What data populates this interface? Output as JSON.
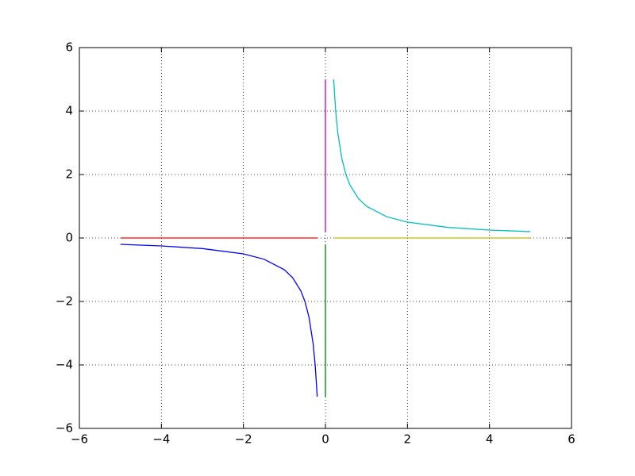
{
  "chart_data": {
    "type": "line",
    "xlim": [
      -6,
      6
    ],
    "ylim": [
      -6,
      6
    ],
    "xticks": [
      {
        "value": -6,
        "label": "−6"
      },
      {
        "value": -4,
        "label": "−4"
      },
      {
        "value": -2,
        "label": "−2"
      },
      0,
      2,
      4,
      6
    ],
    "yticks": [
      {
        "value": -6,
        "label": "−6"
      },
      {
        "value": -4,
        "label": "−4"
      },
      {
        "value": -2,
        "label": "−2"
      },
      0,
      2,
      4,
      6
    ],
    "grid": true,
    "series": [
      {
        "color": "#0000ff",
        "x": [
          -5,
          -4,
          -3,
          -2,
          -1.5,
          -1,
          -0.8,
          -0.6,
          -0.5,
          -0.4,
          -0.3,
          -0.25,
          -0.2
        ],
        "values": [
          -0.2,
          -0.25,
          -0.333,
          -0.5,
          -0.667,
          -1,
          -1.25,
          -1.667,
          -2,
          -2.5,
          -3.333,
          -4,
          -5
        ]
      },
      {
        "color": "#00bfbf",
        "x": [
          0.2,
          0.25,
          0.3,
          0.4,
          0.5,
          0.6,
          0.8,
          1,
          1.5,
          2,
          3,
          4,
          5
        ],
        "values": [
          5,
          4,
          3.333,
          2.5,
          2,
          1.667,
          1.25,
          1,
          0.667,
          0.5,
          0.333,
          0.25,
          0.2
        ]
      },
      {
        "color": "#ff0000",
        "x": [
          -5,
          -0.2
        ],
        "values": [
          0,
          0
        ]
      },
      {
        "color": "#bfbf00",
        "x": [
          0.2,
          5
        ],
        "values": [
          0,
          0
        ]
      },
      {
        "color": "#bf00bf",
        "x": [
          0,
          0
        ],
        "values": [
          0.2,
          5
        ]
      },
      {
        "color": "#008000",
        "x": [
          0,
          0
        ],
        "values": [
          -0.2,
          -5
        ]
      }
    ]
  }
}
